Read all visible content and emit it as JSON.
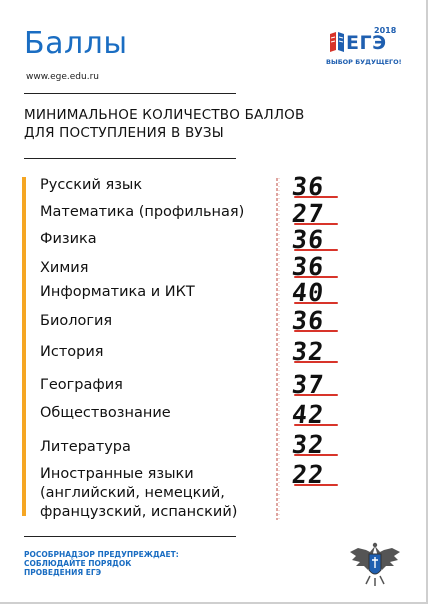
{
  "header": {
    "title": "Баллы",
    "url": "www.ege.edu.ru"
  },
  "logo": {
    "year": "2018",
    "text": "ЕГЭ",
    "tagline": "ВЫБОР БУДУЩЕГО!"
  },
  "heading": {
    "line1": "МИНИМАЛЬНОЕ КОЛИЧЕСТВО БАЛЛОВ",
    "line2": "ДЛЯ ПОСТУПЛЕНИЯ В ВУЗЫ"
  },
  "subjects": [
    {
      "name": "Русский язык",
      "score": "36"
    },
    {
      "name": "Математика (профильная)",
      "score": "27"
    },
    {
      "name": "Физика",
      "score": "36"
    },
    {
      "name": "Химия",
      "score": "36"
    },
    {
      "name": "Информатика и ИКТ",
      "score": "40"
    },
    {
      "name": "Биология",
      "score": "36"
    },
    {
      "name": "История",
      "score": "32"
    },
    {
      "name": "География",
      "score": "37"
    },
    {
      "name": "Обществознание",
      "score": "42"
    },
    {
      "name": "Литература",
      "score": "32"
    },
    {
      "name": "Иностранные языки",
      "name_line2": "(английский, немецкий,",
      "name_line3": "французский, испанский)",
      "score": "22"
    }
  ],
  "footer": {
    "warning_line1": "РОСОБРНАДЗОР ПРЕДУПРЕЖДАЕТ:",
    "warning_line2": "СОБЛЮДАЙТЕ ПОРЯДОК",
    "warning_line3": "ПРОВЕДЕНИЯ ЕГЭ"
  },
  "colors": {
    "title_blue": "#1a6dc2",
    "accent_orange": "#f5a623",
    "underline_red": "#d8342a"
  },
  "icons": [
    "ege-logo-icon",
    "rosobrnadzor-emblem-icon"
  ]
}
